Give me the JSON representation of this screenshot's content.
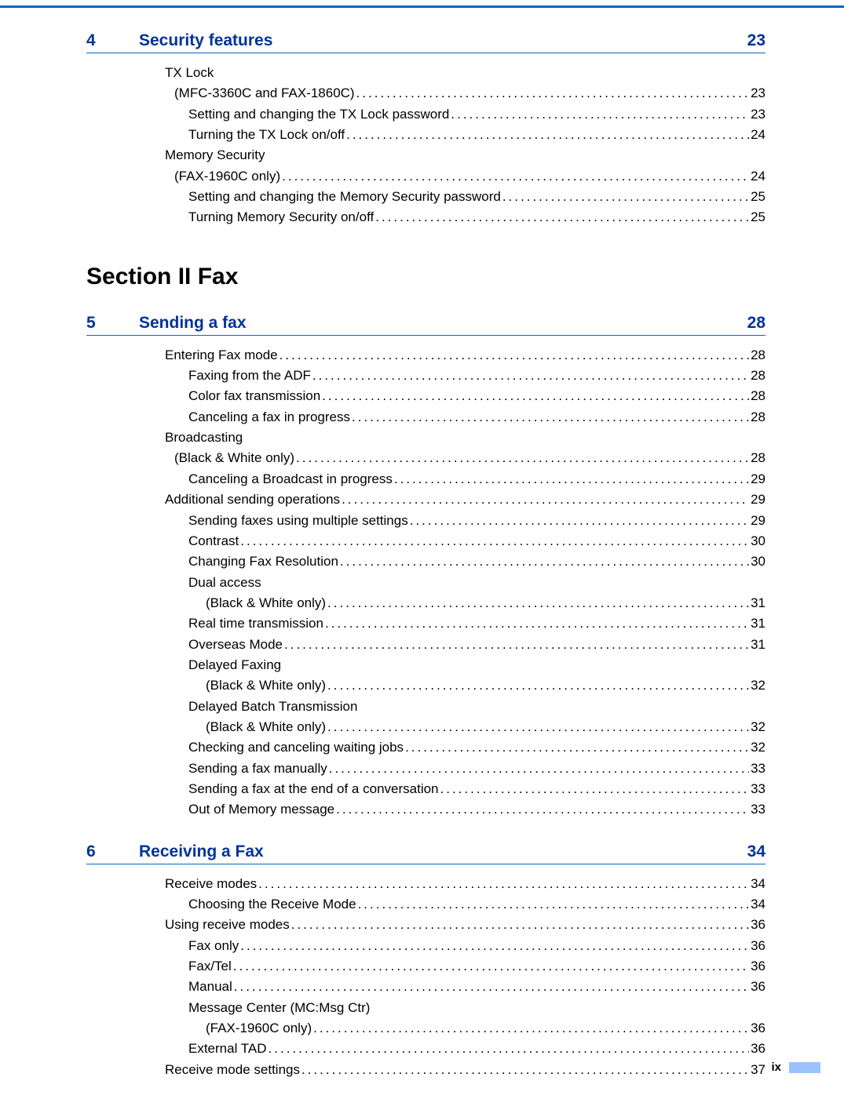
{
  "colors": {
    "accent": "#0066cc",
    "heading": "#003399",
    "text": "#000000",
    "tab": "#99c2ff",
    "background": "#ffffff"
  },
  "section": {
    "label": "Section II   Fax"
  },
  "chapters": [
    {
      "num": "4",
      "title": "Security features",
      "page": "23",
      "entries": [
        {
          "level": 1,
          "text": "TX Lock",
          "page": null
        },
        {
          "level": 2,
          "text": "(MFC-3360C and FAX-1860C)",
          "page": "23"
        },
        {
          "level": 3,
          "text": "Setting and changing the TX Lock password",
          "page": "23"
        },
        {
          "level": 3,
          "text": "Turning the TX Lock on/off",
          "page": "24"
        },
        {
          "level": 1,
          "text": "Memory Security",
          "page": null
        },
        {
          "level": 2,
          "text": "(FAX-1960C only)",
          "page": "24"
        },
        {
          "level": 3,
          "text": "Setting and changing the Memory Security password",
          "page": "25"
        },
        {
          "level": 3,
          "text": "Turning Memory Security on/off",
          "page": "25"
        }
      ]
    },
    {
      "num": "5",
      "title": "Sending a fax",
      "page": "28",
      "entries": [
        {
          "level": 1,
          "text": "Entering Fax mode",
          "page": "28"
        },
        {
          "level": 3,
          "text": "Faxing from the ADF ",
          "page": "28"
        },
        {
          "level": 3,
          "text": "Color fax transmission",
          "page": "28"
        },
        {
          "level": 3,
          "text": "Canceling a fax in progress",
          "page": "28"
        },
        {
          "level": 1,
          "text": "Broadcasting",
          "page": null
        },
        {
          "level": 2,
          "text": "(Black & White only)",
          "page": "28"
        },
        {
          "level": 3,
          "text": "Canceling a Broadcast in progress",
          "page": "29"
        },
        {
          "level": 1,
          "text": "Additional sending operations",
          "page": "29"
        },
        {
          "level": 3,
          "text": "Sending faxes using multiple settings",
          "page": "29"
        },
        {
          "level": 3,
          "text": "Contrast",
          "page": "30"
        },
        {
          "level": 3,
          "text": "Changing Fax Resolution",
          "page": "30"
        },
        {
          "level": 3,
          "text": "Dual access",
          "page": null
        },
        {
          "level": 4,
          "text": "(Black & White only)",
          "page": "31"
        },
        {
          "level": 3,
          "text": "Real time transmission",
          "page": "31"
        },
        {
          "level": 3,
          "text": "Overseas Mode",
          "page": "31"
        },
        {
          "level": 3,
          "text": "Delayed Faxing",
          "page": null
        },
        {
          "level": 4,
          "text": "(Black & White only)",
          "page": "32"
        },
        {
          "level": 3,
          "text": "Delayed Batch Transmission",
          "page": null
        },
        {
          "level": 4,
          "text": "(Black & White only)",
          "page": "32"
        },
        {
          "level": 3,
          "text": "Checking and canceling waiting jobs",
          "page": "32"
        },
        {
          "level": 3,
          "text": "Sending a fax manually",
          "page": "33"
        },
        {
          "level": 3,
          "text": "Sending a fax at the end of a conversation",
          "page": "33"
        },
        {
          "level": 3,
          "text": "Out of Memory message",
          "page": "33"
        }
      ]
    },
    {
      "num": "6",
      "title": "Receiving a Fax",
      "page": "34",
      "entries": [
        {
          "level": 1,
          "text": "Receive modes",
          "page": "34"
        },
        {
          "level": 3,
          "text": "Choosing the Receive Mode",
          "page": "34"
        },
        {
          "level": 1,
          "text": "Using receive modes",
          "page": "36"
        },
        {
          "level": 3,
          "text": "Fax only",
          "page": "36"
        },
        {
          "level": 3,
          "text": "Fax/Tel",
          "page": "36"
        },
        {
          "level": 3,
          "text": "Manual",
          "page": "36"
        },
        {
          "level": 3,
          "text": "Message Center (MC:Msg Ctr)",
          "page": null
        },
        {
          "level": 4,
          "text": "(FAX-1960C only)",
          "page": "36"
        },
        {
          "level": 3,
          "text": "External TAD",
          "page": "36"
        },
        {
          "level": 1,
          "text": "Receive mode settings",
          "page": "37"
        }
      ]
    }
  ],
  "footer": {
    "page_number": "ix"
  }
}
